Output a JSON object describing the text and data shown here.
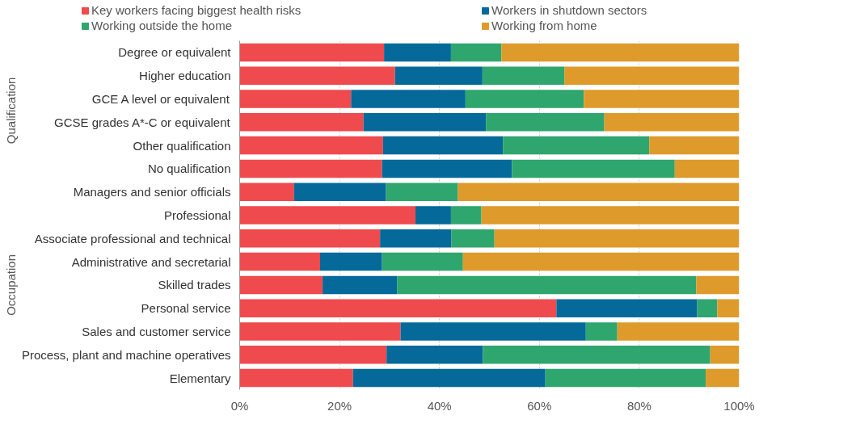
{
  "chart_data": {
    "type": "bar",
    "orientation": "horizontal",
    "stacked": true,
    "categories": [
      "Degree or equivalent",
      "Higher education",
      "GCE A level or equivalent",
      "GCSE grades A*-C or equivalent",
      "Other qualification",
      "No qualification",
      "Managers and senior officials",
      "Professional",
      "Associate professional and technical",
      "Administrative and secretarial",
      "Skilled trades",
      "Personal service",
      "Sales and customer service",
      "Process, plant and machine operatives",
      "Elementary"
    ],
    "series": [
      {
        "name": "Key workers facing biggest health risks",
        "color": "#ef4a4d",
        "values": [
          28.9,
          31.1,
          22.3,
          24.8,
          28.7,
          28.5,
          10.9,
          35.2,
          28.1,
          16.1,
          16.6,
          63.4,
          32.2,
          29.4,
          22.7
        ]
      },
      {
        "name": "Workers in shutdown sectors",
        "color": "#05699a",
        "values": [
          13.4,
          17.5,
          22.9,
          24.5,
          24.0,
          26.0,
          18.4,
          7.1,
          14.3,
          12.4,
          14.9,
          28.2,
          37.1,
          19.3,
          38.5
        ]
      },
      {
        "name": "Working outside the home",
        "color": "#2ea66d",
        "values": [
          10.1,
          16.4,
          23.7,
          23.7,
          29.3,
          32.6,
          14.4,
          6.1,
          8.6,
          16.2,
          59.9,
          4.0,
          6.3,
          45.5,
          32.1
        ]
      },
      {
        "name": "Working from home",
        "color": "#de9a2a",
        "values": [
          47.6,
          35.0,
          31.1,
          27.0,
          18.0,
          12.9,
          56.3,
          51.6,
          49.0,
          55.3,
          8.6,
          4.4,
          24.4,
          5.8,
          6.7
        ]
      }
    ],
    "xlim": [
      0,
      100
    ],
    "xticks": [
      {
        "value": 0,
        "label": "0%"
      },
      {
        "value": 20,
        "label": "20%"
      },
      {
        "value": 40,
        "label": "40%"
      },
      {
        "value": 60,
        "label": "60%"
      },
      {
        "value": 80,
        "label": "80%"
      },
      {
        "value": 100,
        "label": "100%"
      }
    ],
    "grid": "x",
    "legend": "top",
    "annotations": [
      "Qualification",
      "Occupation"
    ]
  }
}
